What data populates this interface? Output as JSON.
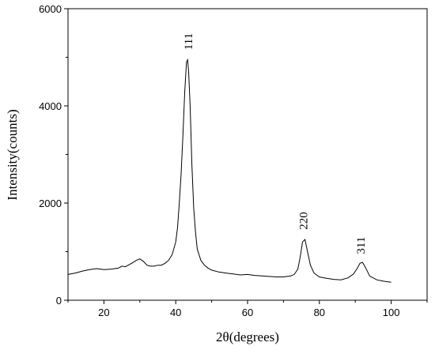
{
  "chart_data": {
    "type": "line",
    "title": "",
    "xlabel": "2θ(degrees)",
    "ylabel": "Intensity(counts)",
    "xlim": [
      10,
      110
    ],
    "ylim": [
      0,
      6000
    ],
    "grid": false,
    "legend": "none",
    "x_ticks": [
      20,
      40,
      60,
      80,
      100
    ],
    "y_ticks": [
      0,
      2000,
      4000,
      6000
    ],
    "line_color": "#000000",
    "series": [
      {
        "x": [
          10,
          12,
          14,
          16,
          18,
          20,
          22,
          24,
          25,
          26,
          27,
          28,
          29,
          30,
          31,
          32,
          33,
          34,
          35,
          36,
          37,
          38,
          39,
          40,
          40.5,
          41,
          41.5,
          42,
          42.5,
          43,
          43.3,
          43.6,
          44,
          44.5,
          45,
          45.5,
          46,
          47,
          48,
          49,
          50,
          52,
          54,
          56,
          58,
          60,
          62,
          64,
          66,
          68,
          70,
          72,
          73,
          74,
          74.7,
          75.3,
          76,
          76.7,
          77.5,
          78.5,
          80,
          82,
          84,
          86,
          88,
          89.5,
          90.5,
          91.3,
          92,
          92.8,
          94,
          96,
          98,
          100
        ],
        "y": [
          530,
          560,
          600,
          630,
          650,
          630,
          640,
          660,
          700,
          690,
          730,
          770,
          820,
          850,
          800,
          720,
          700,
          700,
          720,
          720,
          760,
          820,
          940,
          1200,
          1500,
          2000,
          2600,
          3400,
          4300,
          4900,
          4950,
          4700,
          4000,
          2800,
          1900,
          1400,
          1050,
          820,
          720,
          660,
          620,
          580,
          560,
          540,
          520,
          530,
          510,
          500,
          490,
          480,
          480,
          500,
          530,
          640,
          900,
          1200,
          1250,
          1000,
          720,
          560,
          480,
          450,
          430,
          420,
          460,
          540,
          650,
          760,
          780,
          680,
          500,
          420,
          390,
          370
        ]
      }
    ],
    "annotations": [
      {
        "text": "111",
        "x": 43.5,
        "y": 5150
      },
      {
        "text": "220",
        "x": 75.5,
        "y": 1450
      },
      {
        "text": "311",
        "x": 91.5,
        "y": 950
      }
    ]
  }
}
